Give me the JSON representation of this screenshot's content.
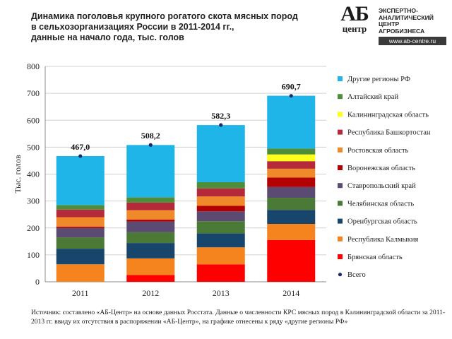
{
  "title": {
    "line1": "Динамика поголовья крупного рогатого скота мясных пород",
    "line2": "в сельхозорганизациях России в 2011-2014 гг.,",
    "line3": "данные на начало года, тыс. голов"
  },
  "logo": {
    "mark_top": "АБ",
    "mark_bottom": "центр",
    "desc": [
      "ЭКСПЕРТНО-",
      "АНАЛИТИЧЕСКИЙ",
      "ЦЕНТР",
      "АГРОБИЗНЕСА"
    ],
    "url": "www.ab-centre.ru"
  },
  "source": "Источник: составлено «АБ-Центр» на основе данных Росстата. Данные о численности КРС мясных пород в Калининградской области за 2011-2013 гг. ввиду их отсутствия в распоряжении «АБ-Центр», на графике отнесены к ряду «другие регионы РФ»",
  "chart_data": {
    "type": "bar",
    "stacked": true,
    "categories": [
      "2011",
      "2012",
      "2013",
      "2014"
    ],
    "ylabel": "Тыс. голов",
    "ylim": [
      0,
      800
    ],
    "yticks": [
      0,
      100,
      200,
      300,
      400,
      500,
      600,
      700,
      800
    ],
    "grid": true,
    "legend_position": "right",
    "series": [
      {
        "name": "Брянская область",
        "color": "#ff0000",
        "values": [
          0,
          25,
          65,
          155
        ]
      },
      {
        "name": "Республика Калмыкия",
        "color": "#f5841f",
        "values": [
          65,
          62,
          63,
          60
        ]
      },
      {
        "name": "Оренбургская область",
        "color": "#17456b",
        "values": [
          58,
          57,
          52,
          52
        ]
      },
      {
        "name": "Челябинская область",
        "color": "#4a7a36",
        "values": [
          42,
          40,
          45,
          45
        ]
      },
      {
        "name": "Ставропольский край",
        "color": "#5b4a72",
        "values": [
          35,
          40,
          37,
          40
        ]
      },
      {
        "name": "Воронежская область",
        "color": "#b30000",
        "values": [
          5,
          7,
          20,
          35
        ]
      },
      {
        "name": "Ростовская область",
        "color": "#f0892a",
        "values": [
          35,
          35,
          35,
          33
        ]
      },
      {
        "name": "Республика Башкортостан",
        "color": "#b52a3a",
        "values": [
          28,
          28,
          30,
          28
        ]
      },
      {
        "name": "Калининградская область",
        "color": "#ffff1a",
        "values": [
          0,
          0,
          0,
          25
        ]
      },
      {
        "name": "Алтайский край",
        "color": "#4e8e3a",
        "values": [
          17,
          20,
          23,
          22
        ]
      },
      {
        "name": "Другие регионы РФ",
        "color": "#1fb5e8",
        "values": [
          182,
          194,
          212,
          196
        ]
      }
    ],
    "total": {
      "name": "Всего",
      "color": "#1a2a6b",
      "values": [
        467.0,
        508.2,
        582.3,
        690.7
      ],
      "labels": [
        "467,0",
        "508,2",
        "582,3",
        "690,7"
      ]
    }
  }
}
